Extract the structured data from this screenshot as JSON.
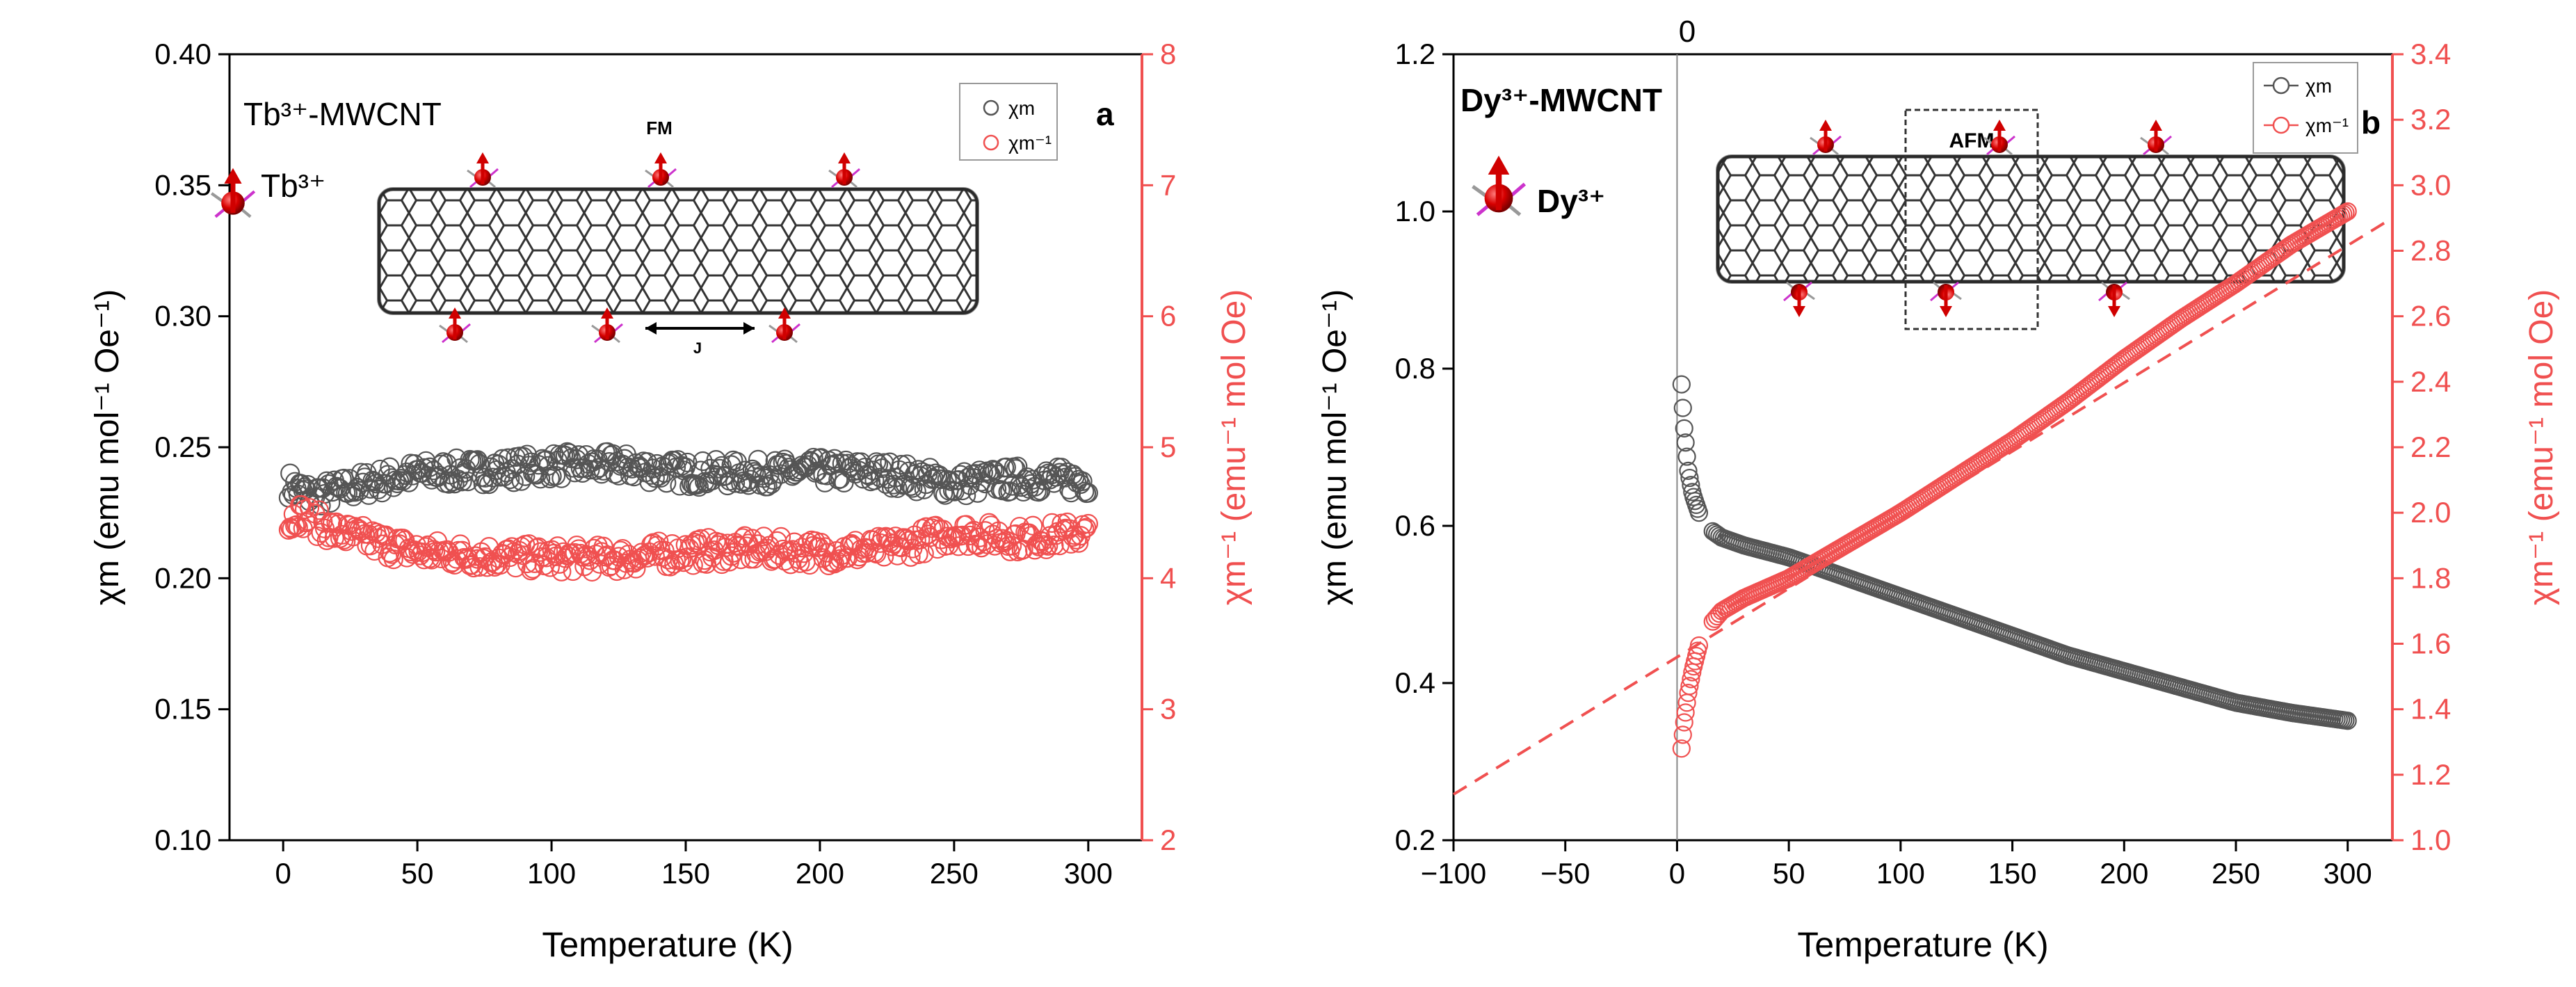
{
  "colors": {
    "chi_series": "#555555",
    "inv_series": "#f05050",
    "right_axis": "#f05050",
    "axis": "#000000"
  },
  "chart_data": [
    {
      "type": "scatter",
      "panel_label": "a",
      "sample_label": "Tb³⁺-MWCNT",
      "ion_label": "Tb³⁺",
      "inset_label": "FM",
      "coupling_label": "J",
      "xlabel": "Temperature (K)",
      "ylabel_left": "χm (emu mol⁻¹ Oe⁻¹)",
      "ylabel_right": "χm⁻¹ (emu⁻¹ mol Oe)",
      "xlim": [
        -20,
        320
      ],
      "ylim_left": [
        0.1,
        0.4
      ],
      "ylim_right": [
        2,
        8
      ],
      "xticks": [
        0,
        50,
        100,
        150,
        200,
        250,
        300
      ],
      "xtick_labels": [
        "0",
        "50",
        "100",
        "150",
        "200",
        "250",
        "300"
      ],
      "yticks_left": [
        0.1,
        0.15,
        0.2,
        0.25,
        0.3,
        0.35,
        0.4
      ],
      "ytick_labels_left": [
        "0.10",
        "0.15",
        "0.20",
        "0.25",
        "0.30",
        "0.35",
        "0.40"
      ],
      "yticks_right": [
        2,
        3,
        4,
        5,
        6,
        7,
        8
      ],
      "ytick_labels_right": [
        "2",
        "3",
        "4",
        "5",
        "6",
        "7",
        "8"
      ],
      "legend": [
        "χm",
        "χm⁻¹"
      ],
      "legend_position": "top-right",
      "series": [
        {
          "name": "χm",
          "axis": "left",
          "x": [
            2,
            5,
            10,
            20,
            30,
            50,
            75,
            100,
            125,
            150,
            175,
            200,
            225,
            250,
            275,
            300
          ],
          "y": [
            0.236,
            0.234,
            0.232,
            0.233,
            0.236,
            0.24,
            0.241,
            0.243,
            0.243,
            0.24,
            0.24,
            0.241,
            0.24,
            0.236,
            0.238,
            0.237
          ]
        },
        {
          "name": "χm⁻¹",
          "axis": "right",
          "x": [
            2,
            5,
            10,
            20,
            30,
            50,
            75,
            100,
            125,
            150,
            175,
            200,
            225,
            250,
            275,
            300
          ],
          "y": [
            4.4,
            4.5,
            4.45,
            4.35,
            4.3,
            4.2,
            4.17,
            4.15,
            4.15,
            4.2,
            4.22,
            4.2,
            4.22,
            4.35,
            4.3,
            4.35
          ]
        }
      ]
    },
    {
      "type": "scatter",
      "panel_label": "b",
      "sample_label": "Dy³⁺-MWCNT",
      "ion_label": "Dy³⁺",
      "inset_label": "AFM",
      "top_label": "0",
      "xlabel": "Temperature (K)",
      "ylabel_left": "χm (emu mol⁻¹ Oe⁻¹)",
      "ylabel_right": "χm⁻¹ (emu⁻¹ mol Oe)",
      "xlim": [
        -100,
        320
      ],
      "ylim_left": [
        0.2,
        1.2
      ],
      "ylim_right": [
        1.0,
        3.4
      ],
      "xticks": [
        -100,
        -50,
        0,
        50,
        100,
        150,
        200,
        250,
        300
      ],
      "xtick_labels": [
        "−100",
        "−50",
        "0",
        "50",
        "100",
        "150",
        "200",
        "250",
        "300"
      ],
      "yticks_left": [
        0.2,
        0.4,
        0.6,
        0.8,
        1.0,
        1.2
      ],
      "ytick_labels_left": [
        "0.2",
        "0.4",
        "0.6",
        "0.8",
        "1.0",
        "1.2"
      ],
      "yticks_right": [
        1.0,
        1.2,
        1.4,
        1.6,
        1.8,
        2.0,
        2.2,
        2.4,
        2.6,
        2.8,
        3.0,
        3.2,
        3.4
      ],
      "ytick_labels_right": [
        "1.0",
        "1.2",
        "1.4",
        "1.6",
        "1.8",
        "2.0",
        "2.2",
        "2.4",
        "2.6",
        "2.8",
        "3.0",
        "3.2",
        "3.4"
      ],
      "legend": [
        "χm",
        "χm⁻¹"
      ],
      "legend_position": "top-right",
      "fit_line": {
        "axis": "right",
        "x": [
          -100,
          320
        ],
        "y": [
          1.14,
          2.9
        ]
      },
      "series": [
        {
          "name": "χm",
          "axis": "left",
          "x": [
            2,
            3,
            4,
            5,
            7,
            10,
            15,
            20,
            30,
            50,
            75,
            100,
            125,
            150,
            175,
            200,
            225,
            250,
            275,
            300
          ],
          "y": [
            0.78,
            0.73,
            0.7,
            0.67,
            0.64,
            0.615,
            0.595,
            0.585,
            0.575,
            0.56,
            0.535,
            0.51,
            0.485,
            0.46,
            0.435,
            0.415,
            0.395,
            0.375,
            0.362,
            0.352
          ]
        },
        {
          "name": "χm⁻¹",
          "axis": "right",
          "x": [
            2,
            3,
            4,
            5,
            7,
            10,
            15,
            20,
            30,
            50,
            75,
            100,
            125,
            150,
            175,
            200,
            225,
            250,
            275,
            300
          ],
          "y": [
            1.28,
            1.35,
            1.4,
            1.45,
            1.52,
            1.6,
            1.66,
            1.7,
            1.74,
            1.8,
            1.9,
            2.0,
            2.11,
            2.22,
            2.34,
            2.47,
            2.59,
            2.7,
            2.82,
            2.92
          ]
        }
      ]
    }
  ]
}
